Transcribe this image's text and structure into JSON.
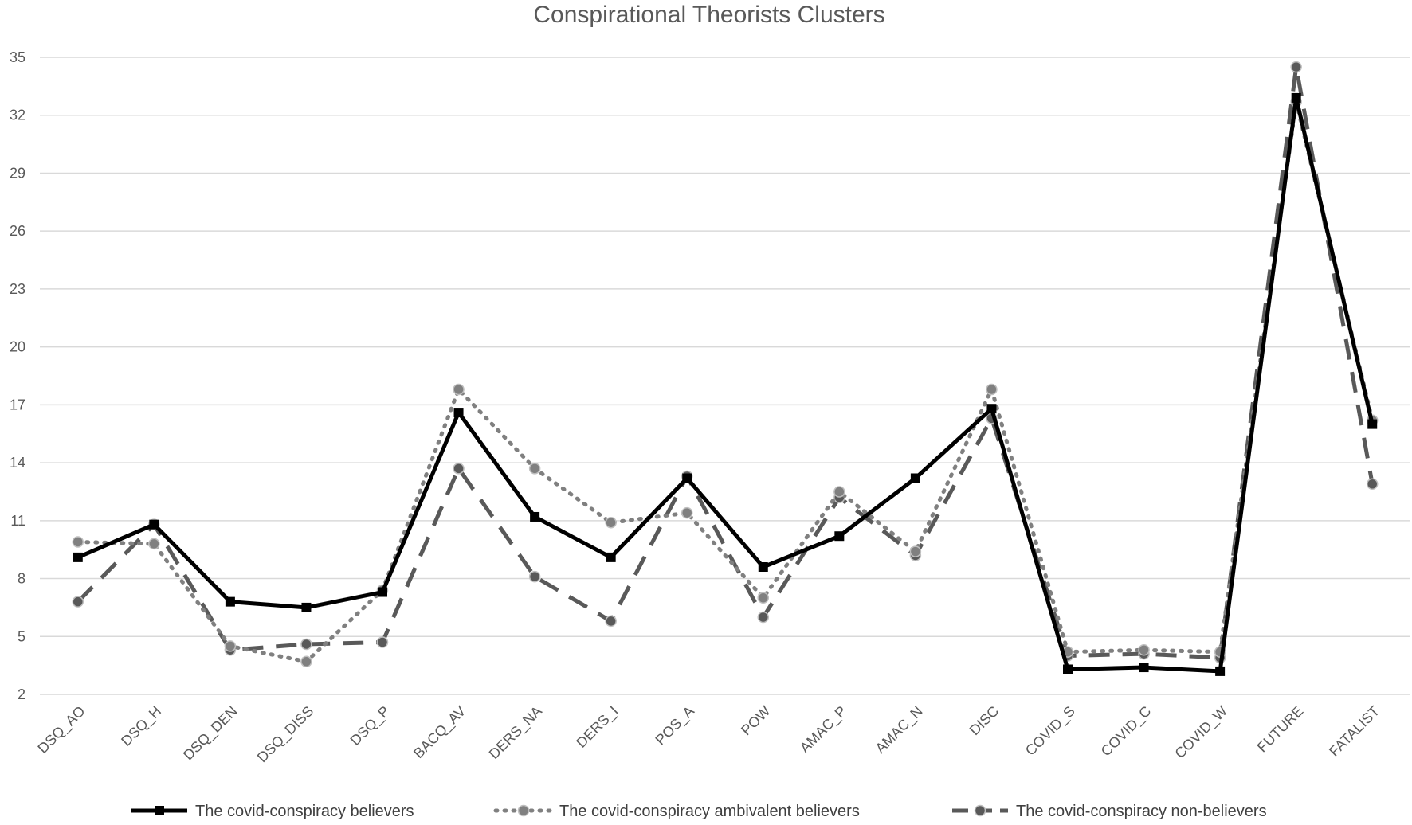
{
  "chart_data": {
    "type": "line",
    "title": "Conspirational Theorists Clusters",
    "xlabel": "",
    "ylabel": "",
    "ylim": [
      2,
      35
    ],
    "yticks": [
      2,
      5,
      8,
      11,
      14,
      17,
      20,
      23,
      26,
      29,
      32,
      35
    ],
    "grid": true,
    "legend_position": "bottom",
    "categories": [
      "DSQ_AO",
      "DSQ_H",
      "DSQ_DEN",
      "DSQ_DISS",
      "DSQ_P",
      "BACQ_AV",
      "DERS_NA",
      "DERS_I",
      "POS_A",
      "POW",
      "AMAC_P",
      "AMAC_N",
      "DISC",
      "COVID_S",
      "COVID_C",
      "COVID_W",
      "FUTURE",
      "FATALIST"
    ],
    "series": [
      {
        "name": "The covid-conspiracy believers",
        "color": "#000000",
        "style": "solid",
        "marker": "square",
        "values": [
          9.1,
          10.8,
          6.8,
          6.5,
          7.3,
          16.6,
          11.2,
          9.1,
          13.2,
          8.6,
          10.2,
          13.2,
          16.8,
          3.3,
          3.4,
          3.2,
          32.9,
          16.0
        ]
      },
      {
        "name": "The covid-conspiracy ambivalent believers",
        "color": "#808080",
        "style": "dotted",
        "marker": "circle",
        "values": [
          9.9,
          9.8,
          4.5,
          3.7,
          7.4,
          17.8,
          13.7,
          10.9,
          11.4,
          7.0,
          12.5,
          9.4,
          17.8,
          4.2,
          4.3,
          4.2,
          32.7,
          16.2
        ]
      },
      {
        "name": "The covid-conspiracy non-believers",
        "color": "#595959",
        "style": "dashed",
        "marker": "circle",
        "values": [
          6.8,
          10.8,
          4.3,
          4.6,
          4.7,
          13.7,
          8.1,
          5.8,
          13.3,
          6.0,
          12.2,
          9.2,
          16.3,
          4.0,
          4.1,
          3.9,
          34.5,
          12.9
        ]
      }
    ]
  }
}
